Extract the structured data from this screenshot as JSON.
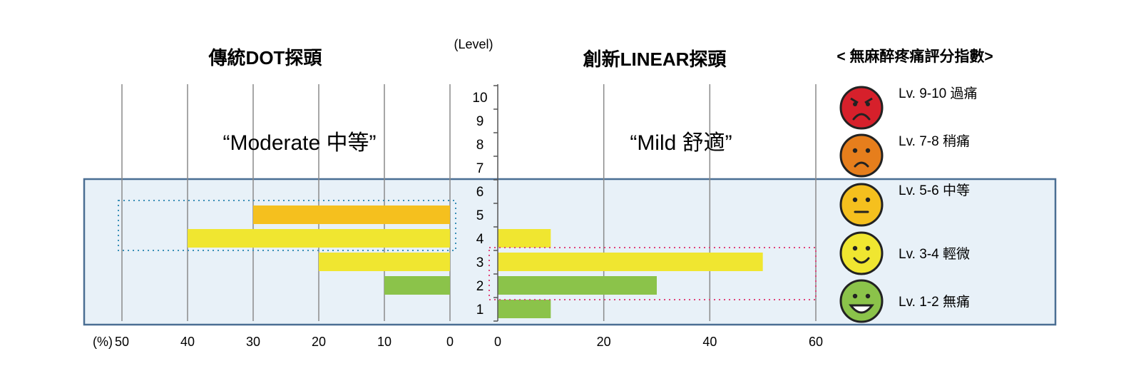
{
  "chart_data": {
    "type": "bar",
    "level_axis_label": "(Level)",
    "levels": [
      "1",
      "2",
      "3",
      "4",
      "5",
      "6",
      "7",
      "8",
      "9",
      "10"
    ],
    "percent_unit_label": "(%)",
    "left_panel": {
      "title": "傳統DOT探頭",
      "annotation": "“Moderate 中等”",
      "xlim": [
        0,
        50
      ],
      "ticks": [
        "50",
        "40",
        "30",
        "20",
        "10",
        "0"
      ],
      "bars": [
        {
          "level": 2,
          "value": 10,
          "color": "#8bc34a"
        },
        {
          "level": 3,
          "value": 20,
          "color": "#f0e630"
        },
        {
          "level": 4,
          "value": 40,
          "color": "#f0e630"
        },
        {
          "level": 5,
          "value": 30,
          "color": "#f5c01e"
        }
      ],
      "highlight_levels": [
        4,
        5
      ],
      "highlight_color": "#3a8fb7"
    },
    "right_panel": {
      "title": "創新LINEAR探頭",
      "annotation": "“Mild 舒適”",
      "xlim": [
        0,
        60
      ],
      "ticks": [
        "0",
        "20",
        "40",
        "60"
      ],
      "bars": [
        {
          "level": 1,
          "value": 10,
          "color": "#8bc34a"
        },
        {
          "level": 2,
          "value": 30,
          "color": "#8bc34a"
        },
        {
          "level": 3,
          "value": 50,
          "color": "#f0e630"
        },
        {
          "level": 4,
          "value": 10,
          "color": "#f0e630"
        }
      ],
      "highlight_levels": [
        2,
        3
      ],
      "highlight_color": "#e0457b"
    },
    "highlight_band_levels": [
      1,
      6
    ],
    "legend": {
      "title": "< 無麻醉疼痛評分指數>",
      "items": [
        {
          "label": "Lv. 9-10 過痛",
          "face": "angry",
          "color": "#d6202b"
        },
        {
          "label": "Lv. 7-8  稍痛",
          "face": "sad",
          "color": "#e67e1c"
        },
        {
          "label": "Lv. 5-6  中等",
          "face": "neutral",
          "color": "#f5c01e"
        },
        {
          "label": "Lv. 3-4  輕微",
          "face": "smile",
          "color": "#f0e630"
        },
        {
          "label": "Lv. 1-2   無痛",
          "face": "grin",
          "color": "#8bc34a"
        }
      ]
    }
  }
}
